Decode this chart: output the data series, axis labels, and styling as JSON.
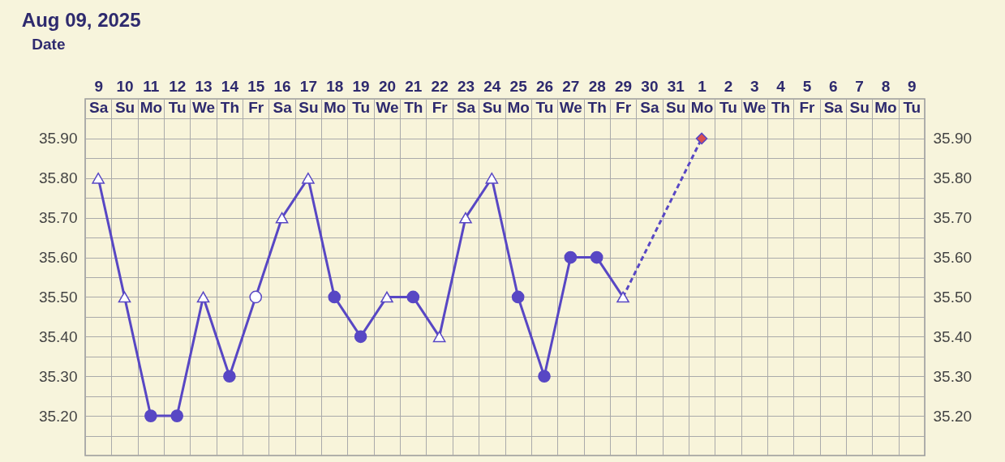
{
  "chart_data": {
    "type": "line",
    "title": "Aug 09, 2025",
    "xlabel": "Date",
    "categories": [
      "9 Sa",
      "10 Su",
      "11 Mo",
      "12 Tu",
      "13 We",
      "14 Th",
      "15 Fr",
      "16 Sa",
      "17 Su",
      "18 Mo",
      "19 Tu",
      "20 We",
      "21 Th",
      "22 Fr",
      "23 Sa",
      "24 Su",
      "25 Mo",
      "26 Tu",
      "27 We",
      "28 Th",
      "29 Fr",
      "30 Sa",
      "31 Su",
      "1 Mo",
      "2 Tu",
      "3 We",
      "4 Th",
      "5 Fr",
      "6 Sa",
      "7 Su",
      "8 Mo",
      "9 Tu"
    ],
    "series": [
      {
        "color": "#5847c4",
        "marker": "none",
        "line_style": "solid",
        "values": [
          35.8,
          35.5,
          35.2,
          35.2,
          35.5,
          35.3,
          35.5,
          35.7,
          35.8,
          35.5,
          35.4,
          35.5,
          35.5,
          35.4,
          35.7,
          35.8,
          35.5,
          35.3,
          35.6,
          35.6,
          35.5,
          null,
          null,
          null,
          null,
          null,
          null,
          null,
          null,
          null,
          null,
          null
        ]
      },
      {
        "type": "line",
        "color": "#5847c4",
        "marker": "none",
        "line_style": "dashed",
        "values": [
          null,
          null,
          null,
          null,
          null,
          null,
          null,
          null,
          null,
          null,
          null,
          null,
          null,
          null,
          null,
          null,
          null,
          null,
          null,
          null,
          35.5,
          null,
          null,
          35.9,
          null,
          null,
          null,
          null,
          null,
          null,
          null,
          null
        ]
      },
      {
        "type": "scatter",
        "color": "#5847c4",
        "marker": "circle",
        "values": [
          null,
          null,
          35.2,
          35.2,
          null,
          35.3,
          null,
          null,
          null,
          35.5,
          35.4,
          null,
          35.5,
          null,
          null,
          null,
          35.5,
          35.3,
          35.6,
          35.6,
          null,
          null,
          null,
          null,
          null,
          null,
          null,
          null,
          null,
          null,
          null,
          null
        ]
      },
      {
        "type": "scatter",
        "color": "#ffffff",
        "marker": "triangle",
        "values": [
          35.8,
          35.5,
          null,
          null,
          35.5,
          null,
          null,
          35.7,
          35.8,
          null,
          null,
          35.5,
          null,
          35.4,
          35.7,
          35.8,
          null,
          null,
          null,
          null,
          35.5,
          null,
          null,
          null,
          null,
          null,
          null,
          null,
          null,
          null,
          null,
          null
        ]
      },
      {
        "type": "scatter",
        "color": "#ffffff",
        "marker": "circle",
        "values": [
          null,
          null,
          null,
          null,
          null,
          null,
          35.5,
          null,
          null,
          null,
          null,
          null,
          null,
          null,
          null,
          null,
          null,
          null,
          null,
          null,
          null,
          null,
          null,
          null,
          null,
          null,
          null,
          null,
          null,
          null,
          null,
          null
        ]
      },
      {
        "type": "scatter",
        "color": "#d9504f",
        "marker": "diamond",
        "values": [
          null,
          null,
          null,
          null,
          null,
          null,
          null,
          null,
          null,
          null,
          null,
          null,
          null,
          null,
          null,
          null,
          null,
          null,
          null,
          null,
          null,
          null,
          null,
          35.9,
          null,
          null,
          null,
          null,
          null,
          null,
          null,
          null
        ]
      }
    ],
    "ylim": [
      35.1,
      36.0
    ],
    "yticks": [
      {
        "value": 35.15,
        "label": null
      },
      {
        "value": 35.2,
        "label": "35.20"
      },
      {
        "value": 35.25,
        "label": null
      },
      {
        "value": 35.3,
        "label": "35.30"
      },
      {
        "value": 35.35,
        "label": null
      },
      {
        "value": 35.4,
        "label": "35.40"
      },
      {
        "value": 35.45,
        "label": null
      },
      {
        "value": 35.5,
        "label": "35.50"
      },
      {
        "value": 35.55,
        "label": null
      },
      {
        "value": 35.6,
        "label": "35.60"
      },
      {
        "value": 35.65,
        "label": null
      },
      {
        "value": 35.7,
        "label": "35.70"
      },
      {
        "value": 35.75,
        "label": null
      },
      {
        "value": 35.8,
        "label": "35.80"
      },
      {
        "value": 35.85,
        "label": null
      },
      {
        "value": 35.9,
        "label": "35.90"
      },
      {
        "value": 35.95,
        "label": null
      }
    ],
    "y2lim": [
      35.1,
      36.0
    ],
    "y2ticks": [
      {
        "value": 35.15,
        "label": null
      },
      {
        "value": 35.2,
        "label": "35.20"
      },
      {
        "value": 35.25,
        "label": null
      },
      {
        "value": 35.3,
        "label": "35.30"
      },
      {
        "value": 35.35,
        "label": null
      },
      {
        "value": 35.4,
        "label": "35.40"
      },
      {
        "value": 35.45,
        "label": null
      },
      {
        "value": 35.5,
        "label": "35.50"
      },
      {
        "value": 35.55,
        "label": null
      },
      {
        "value": 35.6,
        "label": "35.60"
      },
      {
        "value": 35.65,
        "label": null
      },
      {
        "value": 35.7,
        "label": "35.70"
      },
      {
        "value": 35.75,
        "label": null
      },
      {
        "value": 35.8,
        "label": "35.80"
      },
      {
        "value": 35.85,
        "label": null
      },
      {
        "value": 35.9,
        "label": "35.90"
      },
      {
        "value": 35.95,
        "label": null
      }
    ],
    "grid": true
  }
}
